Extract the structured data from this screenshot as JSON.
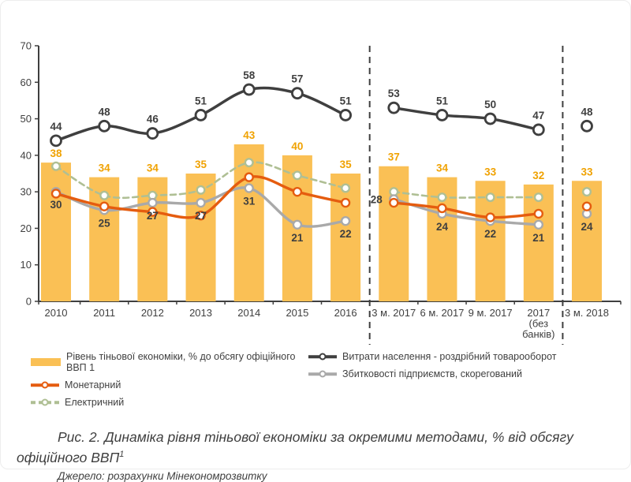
{
  "figure": {
    "caption": "Рис. 2. Динаміка рівня тіньової економіки за окремими методами, % від обсягу офіційного ВВП",
    "caption_footnote": "1",
    "source": "Джерело: розрахунки Мінекономрозвитку"
  },
  "chart_data": {
    "type": "combo-bar-line",
    "title": "",
    "xlabel": "",
    "ylabel": "",
    "categories": [
      "2010",
      "2011",
      "2012",
      "2013",
      "2014",
      "2015",
      "2016",
      "3 м. 2017",
      "6 м. 2017",
      "9 м. 2017",
      "2017 (без банків)",
      "3 м. 2018"
    ],
    "ylim": [
      0,
      70
    ],
    "yticks": [
      0,
      10,
      20,
      30,
      40,
      50,
      60,
      70
    ],
    "grid": false,
    "legend_position": "bottom",
    "divider_after_indices": [
      6,
      10
    ],
    "series": [
      {
        "name": "Рівень тіньової економіки, % до обсягу офіційного ВВП 1",
        "type": "bar",
        "color": "#FAC055",
        "values": [
          38,
          34,
          34,
          35,
          43,
          40,
          35,
          37,
          34,
          33,
          32,
          33
        ],
        "show_labels": true,
        "label_color": "#F0A202"
      },
      {
        "name": "Електричний",
        "type": "line",
        "dashed": true,
        "color": "#AFBF94",
        "line_width": 2.6,
        "marker_radius": 4.8,
        "values": [
          37,
          29,
          29,
          30.5,
          38,
          34.5,
          31,
          30,
          28.5,
          28.5,
          28.5,
          30
        ],
        "show_labels": false
      },
      {
        "name": "Збитковості підприємств, скорегований",
        "type": "line",
        "color": "#A9A9A9",
        "line_width": 3.4,
        "marker_radius": 5,
        "values": [
          30,
          25,
          27,
          27,
          31,
          21,
          22,
          28,
          24,
          22,
          21,
          24
        ],
        "show_labels": true,
        "label_color": "#3F3F3F",
        "label_position": "below",
        "label_offsets": {
          "7": [
            -22,
            5
          ]
        }
      },
      {
        "name": "Монетарний",
        "type": "line",
        "color": "#E55C0F",
        "line_width": 3.4,
        "marker_radius": 5,
        "values": [
          29.5,
          26,
          24.5,
          23.5,
          34,
          30,
          27,
          27,
          25.5,
          23,
          24,
          26
        ],
        "show_labels": false
      },
      {
        "name": "Витрати населення - роздрібний товарооборот",
        "type": "line",
        "color": "#3F3F3F",
        "line_width": 3.5,
        "marker_radius": 6.5,
        "marker_stroke": 2.8,
        "values": [
          44,
          48,
          46,
          51,
          58,
          57,
          51,
          53,
          51,
          50,
          47,
          48
        ],
        "show_labels": true,
        "label_color": "#3F3F3F",
        "label_position": "above"
      }
    ],
    "legend": {
      "col1": [
        {
          "label": "Рівень тіньової економіки, % до обсягу офіційного ВВП 1",
          "swatch": "bar",
          "color": "#FAC055"
        },
        {
          "label": "Монетарний",
          "swatch": "line",
          "color": "#E55C0F"
        },
        {
          "label": "Електричний",
          "swatch": "dashed-line",
          "color": "#AFBF94"
        }
      ],
      "col2": [
        {
          "label": "Витрати населення - роздрібний товарооборот",
          "swatch": "line",
          "color": "#3F3F3F"
        },
        {
          "label": "Збитковості підприємств, скорегований",
          "swatch": "line",
          "color": "#A9A9A9"
        }
      ]
    }
  }
}
